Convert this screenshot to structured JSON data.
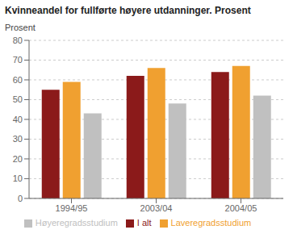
{
  "chart_data": {
    "type": "bar",
    "title": "Kvinneandel for fullførte høyere utdanninger. Prosent",
    "ylabel": "Prosent",
    "categories": [
      "1994/95",
      "2003/04",
      "2004/05"
    ],
    "series": [
      {
        "name": "I alt",
        "color": "#8B1A1A",
        "values": [
          55,
          62,
          64
        ]
      },
      {
        "name": "Laveregradsstudium",
        "color": "#F0A030",
        "values": [
          59,
          66,
          67
        ]
      },
      {
        "name": "Høyeregradsstudium",
        "color": "#C0C0C0",
        "values": [
          43,
          48,
          52
        ]
      }
    ],
    "ylim": [
      0,
      80
    ],
    "yticks": [
      0,
      10,
      20,
      30,
      40,
      50,
      60,
      70,
      80
    ],
    "grid": true,
    "legend": "bottom"
  }
}
